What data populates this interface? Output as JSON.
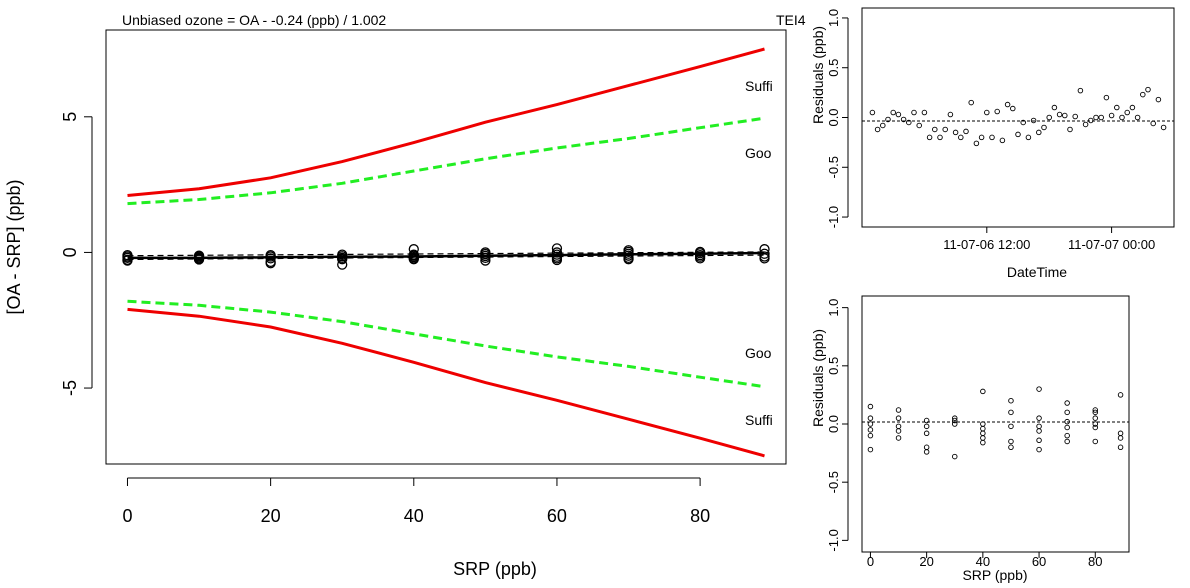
{
  "chart_data": [
    {
      "type": "line",
      "title": "Unbiased ozone = OA - -0.24 (ppb) / 1.002",
      "corner_label": "TEI4",
      "xlabel": "SRP (ppb)",
      "ylabel": "[OA - SRP] (ppb)",
      "xlim": [
        -3,
        92
      ],
      "ylim": [
        -7.8,
        8.2
      ],
      "x_ticks": [
        "0",
        "20",
        "40",
        "60",
        "80"
      ],
      "x_tick_values": [
        0,
        20,
        40,
        60,
        80
      ],
      "y_ticks": [
        "-5",
        "0",
        "5"
      ],
      "y_tick_values": [
        -5,
        0,
        5
      ],
      "grid": false,
      "annotations": [
        "Suffi",
        "Goo",
        "Goo",
        "Suffi"
      ],
      "series": [
        {
          "color": "#ee0000",
          "style": "solid",
          "x": [
            0,
            10,
            20,
            30,
            40,
            50,
            60,
            70,
            80,
            89
          ],
          "y": [
            2.1,
            2.35,
            2.75,
            3.35,
            4.05,
            4.8,
            5.45,
            6.15,
            6.85,
            7.5
          ]
        },
        {
          "color": "#ee0000",
          "style": "solid",
          "x": [
            0,
            10,
            20,
            30,
            40,
            50,
            60,
            70,
            80,
            89
          ],
          "y": [
            -2.1,
            -2.35,
            -2.75,
            -3.35,
            -4.05,
            -4.8,
            -5.45,
            -6.15,
            -6.85,
            -7.5
          ]
        },
        {
          "color": "#22ee22",
          "style": "dashed",
          "x": [
            0,
            10,
            20,
            30,
            40,
            50,
            60,
            70,
            80,
            89
          ],
          "y": [
            1.8,
            1.95,
            2.2,
            2.55,
            3.0,
            3.45,
            3.85,
            4.2,
            4.6,
            4.95
          ]
        },
        {
          "color": "#22ee22",
          "style": "dashed",
          "x": [
            0,
            10,
            20,
            30,
            40,
            50,
            60,
            70,
            80,
            89
          ],
          "y": [
            -1.8,
            -1.95,
            -2.2,
            -2.55,
            -3.0,
            -3.45,
            -3.85,
            -4.2,
            -4.6,
            -4.95
          ]
        },
        {
          "color": "#000000",
          "style": "solid",
          "x": [
            0,
            10,
            20,
            30,
            40,
            50,
            60,
            70,
            80,
            89
          ],
          "y": [
            -0.2,
            -0.2,
            -0.18,
            -0.16,
            -0.15,
            -0.12,
            -0.1,
            -0.07,
            -0.05,
            -0.02
          ]
        },
        {
          "color": "#000000",
          "style": "dashed",
          "x": [
            0,
            89
          ],
          "y": [
            -0.26,
            -0.1
          ]
        },
        {
          "color": "#000000",
          "style": "dashed",
          "x": [
            0,
            89
          ],
          "y": [
            -0.12,
            0.02
          ]
        }
      ],
      "points": {
        "x": [
          0,
          0,
          0,
          0,
          0,
          10,
          10,
          10,
          10,
          10,
          20,
          20,
          20,
          20,
          20,
          30,
          30,
          30,
          30,
          30,
          40,
          40,
          40,
          40,
          40,
          40,
          50,
          50,
          50,
          50,
          50,
          60,
          60,
          60,
          60,
          60,
          60,
          70,
          70,
          70,
          70,
          70,
          70,
          80,
          80,
          80,
          80,
          80,
          89,
          89,
          89,
          89
        ],
        "y": [
          -0.1,
          -0.15,
          -0.2,
          -0.27,
          -0.3,
          -0.12,
          -0.16,
          -0.2,
          -0.24,
          -0.26,
          -0.1,
          -0.15,
          -0.22,
          -0.35,
          -0.4,
          -0.08,
          -0.14,
          -0.2,
          -0.25,
          -0.45,
          0.12,
          -0.08,
          -0.12,
          -0.17,
          -0.22,
          -0.25,
          0.0,
          -0.06,
          -0.13,
          -0.2,
          -0.3,
          0.15,
          0.0,
          -0.08,
          -0.16,
          -0.22,
          -0.28,
          0.08,
          0.02,
          -0.05,
          -0.12,
          -0.2,
          -0.25,
          0.02,
          -0.03,
          -0.1,
          -0.16,
          -0.22,
          0.12,
          -0.05,
          -0.15,
          -0.22
        ]
      }
    },
    {
      "type": "scatter",
      "xlabel": "DateTime",
      "ylabel": "Residuals (ppb)",
      "ylim": [
        -1.1,
        1.1
      ],
      "y_ticks": [
        "-1.0",
        "-0.5",
        "0.0",
        "0.5",
        "1.0"
      ],
      "y_tick_values": [
        -1.0,
        -0.5,
        0.0,
        0.5,
        1.0
      ],
      "x_ticks": [
        "11-07-06 12:00",
        "11-07-07 00:00"
      ],
      "reference_line": 0.0,
      "points": {
        "time_hours": [
          2,
          3,
          4,
          5,
          6,
          7,
          8,
          9,
          10,
          11,
          12,
          13,
          14,
          15,
          16,
          17,
          18,
          19,
          20,
          21,
          22,
          23,
          24,
          25,
          26,
          27,
          28,
          29,
          30,
          31,
          32,
          33,
          34,
          35,
          36,
          37,
          38,
          39,
          40,
          41,
          42,
          43,
          44,
          45,
          46,
          47,
          48,
          49,
          50,
          51,
          52,
          53,
          54,
          55,
          56,
          57,
          58
        ],
        "y": [
          0.05,
          -0.12,
          -0.08,
          -0.02,
          0.05,
          0.03,
          -0.02,
          -0.05,
          0.05,
          -0.08,
          0.05,
          -0.2,
          -0.12,
          -0.2,
          -0.12,
          0.03,
          -0.15,
          -0.2,
          -0.14,
          0.15,
          -0.26,
          -0.2,
          0.05,
          -0.2,
          0.06,
          -0.23,
          0.13,
          0.09,
          -0.17,
          -0.05,
          -0.2,
          -0.03,
          -0.15,
          -0.1,
          0.0,
          0.1,
          0.03,
          0.02,
          -0.12,
          0.01,
          0.27,
          -0.07,
          -0.03,
          0.0,
          0.0,
          0.2,
          0.02,
          0.1,
          0.0,
          0.05,
          0.1,
          0.0,
          0.23,
          0.28,
          -0.06,
          0.18,
          -0.1
        ]
      }
    },
    {
      "type": "scatter",
      "xlabel": "SRP (ppb)",
      "ylabel": "Residuals (ppb)",
      "xlim": [
        -3,
        92
      ],
      "ylim": [
        -1.1,
        1.1
      ],
      "x_ticks": [
        "0",
        "20",
        "40",
        "60",
        "80"
      ],
      "x_tick_values": [
        0,
        20,
        40,
        60,
        80
      ],
      "y_ticks": [
        "-1.0",
        "-0.5",
        "0.0",
        "0.5",
        "1.0"
      ],
      "y_tick_values": [
        -1.0,
        -0.5,
        0.0,
        0.5,
        1.0
      ],
      "reference_line": 0.0,
      "points": {
        "x": [
          0,
          0,
          0,
          0,
          0,
          0,
          10,
          10,
          10,
          10,
          10,
          20,
          20,
          20,
          20,
          20,
          30,
          30,
          30,
          30,
          40,
          40,
          40,
          40,
          40,
          40,
          50,
          50,
          50,
          50,
          50,
          60,
          60,
          60,
          60,
          60,
          60,
          70,
          70,
          70,
          70,
          70,
          70,
          80,
          80,
          80,
          80,
          80,
          80,
          89,
          89,
          89,
          89
        ],
        "y": [
          0.15,
          0.05,
          0.0,
          -0.05,
          -0.1,
          -0.22,
          0.12,
          0.05,
          -0.02,
          -0.06,
          -0.12,
          0.03,
          -0.02,
          -0.08,
          -0.2,
          -0.24,
          0.05,
          0.03,
          0.0,
          -0.28,
          0.28,
          0.0,
          -0.04,
          -0.08,
          -0.12,
          -0.16,
          0.2,
          0.1,
          -0.02,
          -0.15,
          -0.2,
          0.3,
          0.05,
          -0.02,
          -0.06,
          -0.14,
          -0.22,
          0.18,
          0.1,
          0.02,
          -0.03,
          -0.1,
          -0.15,
          0.12,
          0.1,
          0.05,
          0.0,
          -0.03,
          -0.15,
          0.25,
          -0.08,
          -0.12,
          -0.2
        ]
      }
    }
  ]
}
